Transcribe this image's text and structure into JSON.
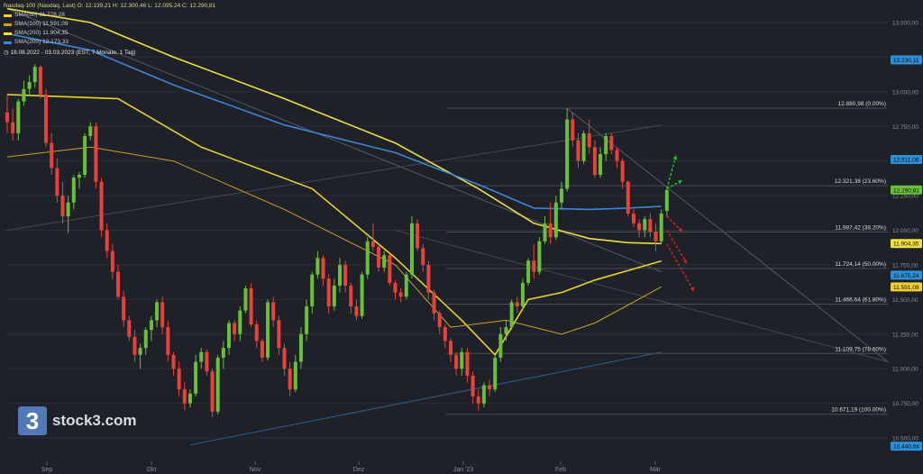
{
  "legend": {
    "header": "Nasdaq-100 (Nasdaq, Last)  O: 12.139,21  H: 12.300,46  L: 12.095,24  C: 12.290,81",
    "sma": [
      {
        "label": "SMA(50)  11.778,28",
        "color": "#e6d32e"
      },
      {
        "label": "SMA(100)  11.591,09",
        "color": "#c9a227"
      },
      {
        "label": "SMA(200)  11.904,35",
        "color": "#f0e040"
      },
      {
        "label": "SMA(200)  12.173,33",
        "color": "#3d86d6"
      }
    ],
    "range": "18.08.2022 - 03.03.2023  (EST, 7 Monate, 1 Tag)"
  },
  "logo": {
    "mark": "3",
    "text": "stock3.com"
  },
  "chart_data": {
    "type": "candlestick",
    "title": "Nasdaq-100",
    "x_ticks": [
      "Sep",
      "Okt",
      "Nov",
      "Dez",
      "Jan '23",
      "Feb",
      "Mär"
    ],
    "y_ticks": [
      "13.500,00",
      "13.250,00",
      "13.000,00",
      "12.750,00",
      "12.500,00",
      "12.250,00",
      "12.000,00",
      "11.750,00",
      "11.500,00",
      "11.250,00",
      "11.000,00",
      "10.750,00",
      "10.500,00"
    ],
    "ylim": [
      10400,
      13650
    ],
    "price_tags": [
      {
        "value": 13230.11,
        "label": "13.230,11",
        "color": "#2d8fd5"
      },
      {
        "value": 12511.06,
        "label": "12.511,06",
        "color": "#2d8fd5"
      },
      {
        "value": 12290.81,
        "label": "12.290,81",
        "color": "#6abf3a"
      },
      {
        "value": 11904.35,
        "label": "11.904,35",
        "color": "#f0e040"
      },
      {
        "value": 11675.24,
        "label": "11.675,24",
        "color": "#2d8fd5"
      },
      {
        "value": 11591.09,
        "label": "11.591,09",
        "color": "#f0d030"
      },
      {
        "value": 10440.64,
        "label": "10.440,64",
        "color": "#2d8fd5"
      }
    ],
    "fib_levels": [
      {
        "value": 12880.98,
        "label": "12.880,98 (0.00%)"
      },
      {
        "value": 12321.38,
        "label": "12.321,38 (23.60%)"
      },
      {
        "value": 11987.42,
        "label": "11.987,42 (38.20%)"
      },
      {
        "value": 11724.14,
        "label": "11.724,14 (50.00%)"
      },
      {
        "value": 11466.64,
        "label": "11.466,64 (61.80%)"
      },
      {
        "value": 11109.75,
        "label": "11.109,75 (78.60%)"
      },
      {
        "value": 10671.19,
        "label": "10.671,19 (100.00%)"
      }
    ],
    "candles": [
      [
        12850,
        12980,
        12700,
        12780
      ],
      [
        12780,
        12880,
        12650,
        12700
      ],
      [
        12700,
        12950,
        12650,
        12930
      ],
      [
        12930,
        13080,
        12900,
        13020
      ],
      [
        13020,
        13120,
        12980,
        13070
      ],
      [
        13070,
        13200,
        13030,
        13180
      ],
      [
        13180,
        13190,
        12950,
        12980
      ],
      [
        12980,
        13020,
        12600,
        12630
      ],
      [
        12630,
        12700,
        12400,
        12450
      ],
      [
        12450,
        12520,
        12200,
        12250
      ],
      [
        12250,
        12350,
        12050,
        12100
      ],
      [
        12100,
        12250,
        11980,
        12200
      ],
      [
        12200,
        12400,
        12150,
        12380
      ],
      [
        12380,
        12420,
        12300,
        12400
      ],
      [
        12400,
        12700,
        12380,
        12680
      ],
      [
        12680,
        12780,
        12650,
        12750
      ],
      [
        12750,
        12780,
        12300,
        12350
      ],
      [
        12350,
        12380,
        11950,
        12000
      ],
      [
        12000,
        12050,
        11800,
        11850
      ],
      [
        11850,
        11900,
        11650,
        11700
      ],
      [
        11700,
        11750,
        11500,
        11520
      ],
      [
        11520,
        11560,
        11300,
        11350
      ],
      [
        11350,
        11380,
        11200,
        11230
      ],
      [
        11230,
        11280,
        11050,
        11100
      ],
      [
        11100,
        11180,
        11000,
        11150
      ],
      [
        11150,
        11300,
        11100,
        11280
      ],
      [
        11280,
        11380,
        11200,
        11350
      ],
      [
        11350,
        11500,
        11300,
        11480
      ],
      [
        11480,
        11520,
        11250,
        11300
      ],
      [
        11300,
        11350,
        11050,
        11100
      ],
      [
        11100,
        11120,
        10950,
        11000
      ],
      [
        11000,
        11050,
        10800,
        10850
      ],
      [
        10850,
        10900,
        10700,
        10750
      ],
      [
        10750,
        10850,
        10720,
        10820
      ],
      [
        10820,
        11100,
        10800,
        11050
      ],
      [
        11050,
        11150,
        11000,
        11120
      ],
      [
        11120,
        11140,
        10950,
        10980
      ],
      [
        10980,
        11000,
        10650,
        10690
      ],
      [
        10690,
        11100,
        10670,
        11080
      ],
      [
        11080,
        11200,
        11000,
        11150
      ],
      [
        11150,
        11350,
        11100,
        11330
      ],
      [
        11330,
        11350,
        11200,
        11250
      ],
      [
        11250,
        11450,
        11200,
        11420
      ],
      [
        11420,
        11600,
        11400,
        11580
      ],
      [
        11580,
        11620,
        11300,
        11320
      ],
      [
        11320,
        11350,
        11150,
        11200
      ],
      [
        11200,
        11220,
        11050,
        11080
      ],
      [
        11080,
        11500,
        11060,
        11480
      ],
      [
        11480,
        11520,
        11300,
        11350
      ],
      [
        11350,
        11380,
        11100,
        11150
      ],
      [
        11150,
        11180,
        10950,
        11000
      ],
      [
        11000,
        11050,
        10800,
        10850
      ],
      [
        10850,
        11100,
        10830,
        11050
      ],
      [
        11050,
        11300,
        11000,
        11250
      ],
      [
        11250,
        11500,
        11200,
        11450
      ],
      [
        11450,
        11700,
        11400,
        11680
      ],
      [
        11680,
        11850,
        11650,
        11800
      ],
      [
        11800,
        11820,
        11600,
        11650
      ],
      [
        11650,
        11680,
        11400,
        11450
      ],
      [
        11450,
        11650,
        11420,
        11600
      ],
      [
        11600,
        11800,
        11550,
        11750
      ],
      [
        11750,
        11780,
        11550,
        11600
      ],
      [
        11600,
        11620,
        11400,
        11450
      ],
      [
        11450,
        11500,
        11350,
        11380
      ],
      [
        11380,
        11700,
        11360,
        11680
      ],
      [
        11680,
        11950,
        11650,
        11920
      ],
      [
        11920,
        12050,
        11850,
        11880
      ],
      [
        11880,
        11900,
        11700,
        11730
      ],
      [
        11730,
        11850,
        11700,
        11820
      ],
      [
        11820,
        11830,
        11600,
        11620
      ],
      [
        11620,
        11640,
        11500,
        11550
      ],
      [
        11550,
        11580,
        11480,
        11520
      ],
      [
        11520,
        11700,
        11500,
        11680
      ],
      [
        11680,
        12100,
        11650,
        12050
      ],
      [
        12050,
        12080,
        11850,
        11870
      ],
      [
        11870,
        11900,
        11700,
        11750
      ],
      [
        11750,
        11780,
        11500,
        11550
      ],
      [
        11550,
        11570,
        11350,
        11400
      ],
      [
        11400,
        11420,
        11250,
        11300
      ],
      [
        11300,
        11320,
        11150,
        11200
      ],
      [
        11200,
        11220,
        11050,
        11100
      ],
      [
        11100,
        11120,
        10950,
        11000
      ],
      [
        11000,
        11150,
        10950,
        11120
      ],
      [
        11120,
        11150,
        10900,
        10950
      ],
      [
        10950,
        10980,
        10750,
        10800
      ],
      [
        10800,
        10850,
        10700,
        10750
      ],
      [
        10750,
        10900,
        10720,
        10880
      ],
      [
        10880,
        10920,
        10800,
        10850
      ],
      [
        10850,
        11100,
        10830,
        11080
      ],
      [
        11080,
        11300,
        11050,
        11250
      ],
      [
        11250,
        11350,
        11200,
        11300
      ],
      [
        11300,
        11500,
        11280,
        11480
      ],
      [
        11480,
        11520,
        11400,
        11450
      ],
      [
        11450,
        11650,
        11420,
        11620
      ],
      [
        11620,
        11800,
        11600,
        11780
      ],
      [
        11780,
        11900,
        11650,
        11700
      ],
      [
        11700,
        11950,
        11680,
        11920
      ],
      [
        11920,
        12100,
        11900,
        12050
      ],
      [
        12050,
        12200,
        11900,
        11950
      ],
      [
        11950,
        12250,
        11930,
        12200
      ],
      [
        12200,
        12350,
        12150,
        12300
      ],
      [
        12300,
        12880,
        12280,
        12800
      ],
      [
        12800,
        12850,
        12600,
        12650
      ],
      [
        12650,
        12700,
        12450,
        12500
      ],
      [
        12500,
        12720,
        12480,
        12700
      ],
      [
        12700,
        12800,
        12550,
        12600
      ],
      [
        12600,
        12650,
        12380,
        12400
      ],
      [
        12400,
        12600,
        12380,
        12550
      ],
      [
        12550,
        12700,
        12500,
        12680
      ],
      [
        12680,
        12700,
        12550,
        12580
      ],
      [
        12580,
        12600,
        12450,
        12500
      ],
      [
        12500,
        12520,
        12300,
        12350
      ],
      [
        12350,
        12360,
        12100,
        12120
      ],
      [
        12120,
        12150,
        12020,
        12050
      ],
      [
        12050,
        12080,
        11950,
        12000
      ],
      [
        12000,
        12100,
        11950,
        12080
      ],
      [
        12080,
        12120,
        11950,
        11990
      ],
      [
        11990,
        12050,
        11850,
        11920
      ],
      [
        11920,
        12150,
        11900,
        12120
      ],
      [
        12139,
        12300,
        12095,
        12290
      ]
    ],
    "sma_lines": [
      {
        "name": "SMA(50)",
        "color": "#e6d32e",
        "points": [
          [
            0,
            12980
          ],
          [
            20,
            12950
          ],
          [
            35,
            12600
          ],
          [
            55,
            12300
          ],
          [
            70,
            11800
          ],
          [
            82,
            11350
          ],
          [
            88,
            11100
          ],
          [
            94,
            11500
          ],
          [
            100,
            11550
          ],
          [
            106,
            11640
          ],
          [
            118,
            11778
          ]
        ]
      },
      {
        "name": "SMA(100)",
        "color": "#c9a227",
        "points": [
          [
            0,
            12530
          ],
          [
            15,
            12600
          ],
          [
            30,
            12500
          ],
          [
            50,
            12150
          ],
          [
            70,
            11750
          ],
          [
            80,
            11300
          ],
          [
            90,
            11350
          ],
          [
            100,
            11250
          ],
          [
            106,
            11330
          ],
          [
            112,
            11460
          ],
          [
            118,
            11591
          ]
        ]
      },
      {
        "name": "SMA(200)",
        "color": "#f0e040",
        "points": [
          [
            0,
            13600
          ],
          [
            15,
            13500
          ],
          [
            30,
            13250
          ],
          [
            50,
            12950
          ],
          [
            70,
            12630
          ],
          [
            85,
            12300
          ],
          [
            95,
            12050
          ],
          [
            105,
            11940
          ],
          [
            112,
            11910
          ],
          [
            118,
            11904
          ]
        ]
      },
      {
        "name": "SMA(200)",
        "color": "#3d86d6",
        "points": [
          [
            0,
            13420
          ],
          [
            15,
            13300
          ],
          [
            30,
            13050
          ],
          [
            50,
            12760
          ],
          [
            70,
            12560
          ],
          [
            85,
            12330
          ],
          [
            95,
            12160
          ],
          [
            105,
            12150
          ],
          [
            112,
            12160
          ],
          [
            118,
            12173
          ]
        ]
      }
    ]
  }
}
